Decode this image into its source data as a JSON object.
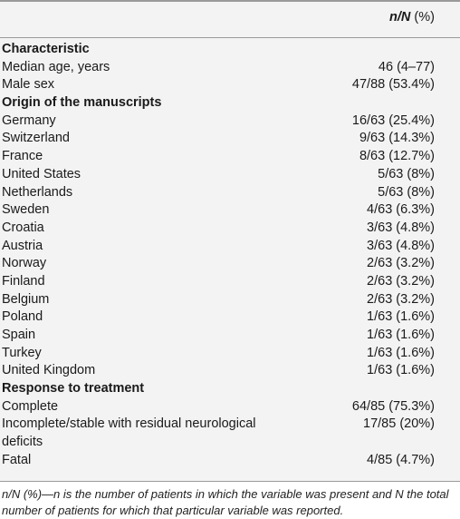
{
  "header": {
    "col_n_italic": "n/N",
    "col_n_rest": " (%)"
  },
  "rows": [
    {
      "type": "section",
      "label": "Characteristic",
      "value": ""
    },
    {
      "type": "item",
      "label": "Median age, years",
      "value": "46 (4–77)"
    },
    {
      "type": "item",
      "label": "Male sex",
      "value": "47/88 (53.4%)"
    },
    {
      "type": "section",
      "label": "Origin of the manuscripts",
      "value": ""
    },
    {
      "type": "item",
      "label": "Germany",
      "value": "16/63 (25.4%)"
    },
    {
      "type": "item",
      "label": "Switzerland",
      "value": "9/63 (14.3%)"
    },
    {
      "type": "item",
      "label": "France",
      "value": "8/63 (12.7%)"
    },
    {
      "type": "item",
      "label": "United States",
      "value": "5/63 (8%)"
    },
    {
      "type": "item",
      "label": "Netherlands",
      "value": "5/63 (8%)"
    },
    {
      "type": "item",
      "label": "Sweden",
      "value": "4/63 (6.3%)"
    },
    {
      "type": "item",
      "label": "Croatia",
      "value": "3/63 (4.8%)"
    },
    {
      "type": "item",
      "label": "Austria",
      "value": "3/63 (4.8%)"
    },
    {
      "type": "item",
      "label": "Norway",
      "value": "2/63 (3.2%)"
    },
    {
      "type": "item",
      "label": "Finland",
      "value": "2/63 (3.2%)"
    },
    {
      "type": "item",
      "label": "Belgium",
      "value": "2/63 (3.2%)"
    },
    {
      "type": "item",
      "label": "Poland",
      "value": "1/63 (1.6%)"
    },
    {
      "type": "item",
      "label": "Spain",
      "value": "1/63 (1.6%)"
    },
    {
      "type": "item",
      "label": "Turkey",
      "value": "1/63 (1.6%)"
    },
    {
      "type": "item",
      "label": "United Kingdom",
      "value": "1/63 (1.6%)"
    },
    {
      "type": "section",
      "label": "Response to treatment",
      "value": ""
    },
    {
      "type": "item",
      "label": "Complete",
      "value": "64/85 (75.3%)"
    },
    {
      "type": "tall",
      "label": "Incomplete/stable with residual neurological deficits",
      "value": "17/85 (20%)"
    },
    {
      "type": "item",
      "label": "Fatal",
      "value": "4/85 (4.7%)"
    }
  ],
  "footnote": "n/N (%)—n is the number of patients in which the variable was present and N the total number of patients for which that particular variable was reported."
}
